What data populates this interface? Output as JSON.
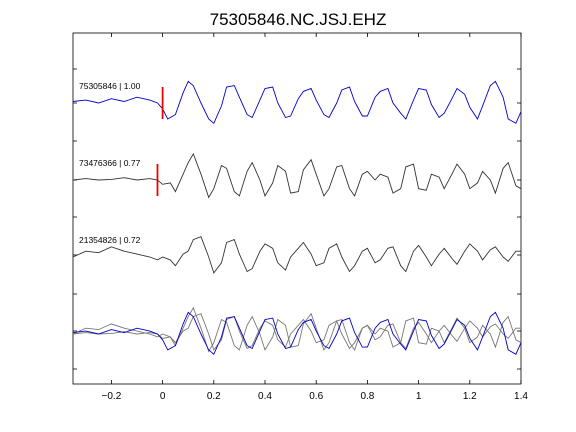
{
  "chart_data": {
    "type": "line",
    "title": "75305846.NC.JSJ.EHZ",
    "xlabel": "",
    "ylabel": "",
    "xlim": [
      -0.35,
      1.4
    ],
    "xticks": [
      -0.2,
      0,
      0.2,
      0.4,
      0.6,
      0.8,
      1,
      1.2,
      1.4
    ],
    "xtick_labels": [
      "−0.2",
      "0",
      "0.2",
      "0.4",
      "0.6",
      "0.8",
      "1",
      "1.2",
      "1.4"
    ],
    "grid": false,
    "colors": {
      "primary": "#0000cc",
      "secondary": "#333333",
      "stacked_grey": "#777777",
      "pick": "#ee0000"
    },
    "series": [
      {
        "label": "75305846 | 1.00",
        "color": "#0000cc",
        "pick_time": 0.0,
        "x": [
          -0.35,
          -0.3,
          -0.25,
          -0.2,
          -0.15,
          -0.1,
          -0.05,
          -0.02,
          0.0,
          0.02,
          0.05,
          0.08,
          0.1,
          0.12,
          0.15,
          0.18,
          0.2,
          0.23,
          0.25,
          0.28,
          0.3,
          0.33,
          0.35,
          0.38,
          0.4,
          0.43,
          0.45,
          0.48,
          0.5,
          0.53,
          0.55,
          0.58,
          0.6,
          0.63,
          0.65,
          0.68,
          0.7,
          0.73,
          0.75,
          0.78,
          0.8,
          0.83,
          0.85,
          0.88,
          0.9,
          0.93,
          0.95,
          0.98,
          1.0,
          1.03,
          1.05,
          1.08,
          1.1,
          1.13,
          1.15,
          1.18,
          1.2,
          1.23,
          1.25,
          1.28,
          1.3,
          1.33,
          1.35,
          1.38,
          1.4
        ],
        "y": [
          0.05,
          0.1,
          0.0,
          0.15,
          0.05,
          0.2,
          0.1,
          0.0,
          -0.2,
          -0.55,
          -0.4,
          0.35,
          0.75,
          0.6,
          0.0,
          -0.55,
          -0.7,
          -0.1,
          0.55,
          0.6,
          0.2,
          -0.4,
          -0.5,
          0.1,
          0.5,
          0.55,
          0.0,
          -0.5,
          -0.45,
          0.15,
          0.4,
          0.5,
          0.1,
          -0.4,
          -0.5,
          0.0,
          0.45,
          0.55,
          0.05,
          -0.45,
          -0.45,
          0.2,
          0.4,
          0.5,
          0.0,
          -0.35,
          -0.55,
          0.1,
          0.5,
          0.45,
          -0.05,
          -0.5,
          -0.35,
          0.15,
          0.5,
          0.3,
          -0.15,
          -0.55,
          -0.1,
          0.6,
          0.75,
          0.2,
          -0.55,
          -0.7,
          -0.3
        ]
      },
      {
        "label": "73476366 | 0.77",
        "color": "#333333",
        "pick_time": -0.02,
        "x": [
          -0.35,
          -0.3,
          -0.25,
          -0.2,
          -0.15,
          -0.1,
          -0.05,
          -0.02,
          0.0,
          0.03,
          0.05,
          0.08,
          0.1,
          0.12,
          0.15,
          0.18,
          0.2,
          0.23,
          0.25,
          0.28,
          0.3,
          0.33,
          0.35,
          0.38,
          0.4,
          0.43,
          0.45,
          0.48,
          0.5,
          0.53,
          0.55,
          0.58,
          0.6,
          0.63,
          0.65,
          0.68,
          0.7,
          0.73,
          0.75,
          0.78,
          0.8,
          0.83,
          0.85,
          0.88,
          0.9,
          0.93,
          0.95,
          0.98,
          1.0,
          1.03,
          1.05,
          1.08,
          1.1,
          1.13,
          1.15,
          1.18,
          1.2,
          1.23,
          1.25,
          1.28,
          1.3,
          1.33,
          1.35,
          1.38,
          1.4
        ],
        "y": [
          0.0,
          0.05,
          0.0,
          0.02,
          0.08,
          0.0,
          0.05,
          0.0,
          -0.15,
          -0.1,
          -0.4,
          0.2,
          0.6,
          0.9,
          0.2,
          -0.6,
          -0.3,
          0.5,
          0.4,
          -0.4,
          -0.55,
          0.3,
          0.6,
          0.0,
          -0.55,
          -0.1,
          0.5,
          0.3,
          -0.45,
          -0.4,
          0.35,
          0.7,
          0.2,
          -0.55,
          -0.3,
          0.45,
          0.5,
          -0.3,
          -0.55,
          0.2,
          0.3,
          0.0,
          0.2,
          0.1,
          -0.45,
          -0.3,
          0.45,
          0.55,
          -0.3,
          -0.35,
          0.2,
          0.1,
          -0.3,
          0.2,
          0.55,
          0.2,
          -0.3,
          -0.1,
          0.3,
          0.0,
          -0.45,
          0.4,
          0.6,
          -0.2,
          -0.3
        ]
      },
      {
        "label": "21354826 | 0.72",
        "color": "#333333",
        "pick_time": null,
        "x": [
          -0.35,
          -0.3,
          -0.25,
          -0.2,
          -0.15,
          -0.1,
          -0.05,
          -0.02,
          0.0,
          0.03,
          0.05,
          0.08,
          0.1,
          0.12,
          0.15,
          0.18,
          0.2,
          0.23,
          0.25,
          0.28,
          0.3,
          0.33,
          0.35,
          0.38,
          0.4,
          0.43,
          0.45,
          0.48,
          0.5,
          0.53,
          0.55,
          0.58,
          0.6,
          0.63,
          0.65,
          0.68,
          0.7,
          0.73,
          0.75,
          0.78,
          0.8,
          0.83,
          0.85,
          0.88,
          0.9,
          0.93,
          0.95,
          0.98,
          1.0,
          1.03,
          1.05,
          1.08,
          1.1,
          1.13,
          1.15,
          1.18,
          1.2,
          1.23,
          1.25,
          1.28,
          1.3,
          1.33,
          1.35,
          1.38,
          1.4
        ],
        "y": [
          0.0,
          0.2,
          0.15,
          0.35,
          0.2,
          0.1,
          0.0,
          -0.1,
          0.0,
          -0.1,
          -0.3,
          0.1,
          0.2,
          0.6,
          0.7,
          0.0,
          -0.55,
          -0.2,
          0.5,
          0.6,
          0.1,
          -0.5,
          -0.4,
          0.2,
          0.45,
          0.3,
          -0.2,
          -0.45,
          0.0,
          0.3,
          0.5,
          0.1,
          -0.3,
          -0.2,
          0.3,
          0.45,
          0.0,
          -0.5,
          -0.3,
          0.2,
          0.3,
          -0.2,
          -0.1,
          0.3,
          0.35,
          -0.3,
          -0.5,
          0.2,
          0.4,
          0.0,
          -0.3,
          0.1,
          0.3,
          -0.05,
          -0.25,
          0.2,
          0.45,
          0.2,
          -0.1,
          0.25,
          0.35,
          0.0,
          -0.15,
          0.2,
          0.2
        ]
      }
    ]
  }
}
